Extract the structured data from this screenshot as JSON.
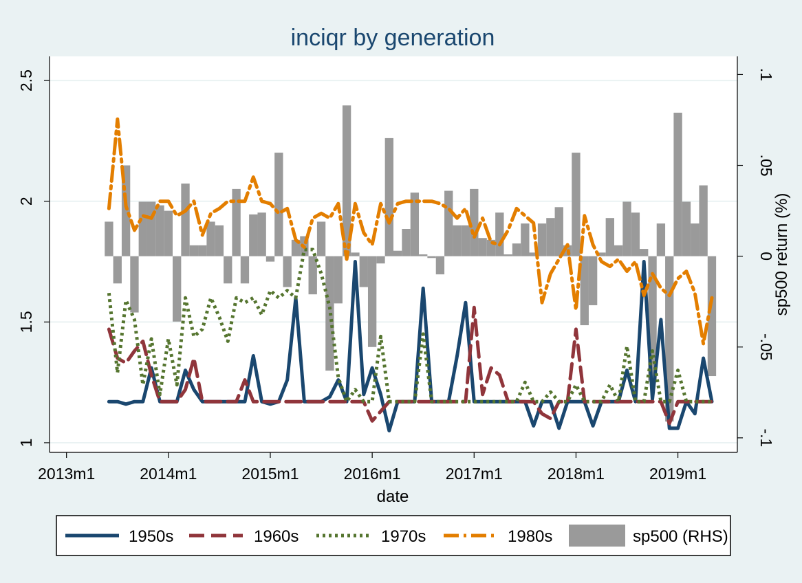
{
  "chart_data": {
    "type": "line",
    "title": "inciqr by generation",
    "xlabel": "date",
    "ylabel": "",
    "y2label": "sp500 return (%)",
    "x_ticks": [
      "2013m1",
      "2014m1",
      "2015m1",
      "2016m1",
      "2017m1",
      "2018m1",
      "2019m1"
    ],
    "y_ticks": [
      "1",
      "1.5",
      "2",
      "2.5"
    ],
    "y2_ticks": [
      "-.1",
      "-.05",
      "0",
      ".05",
      ".1"
    ],
    "xlim": [
      "2012m11",
      "2019m8"
    ],
    "ylim": [
      0.96,
      2.6
    ],
    "y2lim": [
      -0.108,
      0.11
    ],
    "grid": true,
    "legend_position": "bottom",
    "x": [
      "2013m6",
      "2013m7",
      "2013m8",
      "2013m9",
      "2013m10",
      "2013m11",
      "2013m12",
      "2014m1",
      "2014m2",
      "2014m3",
      "2014m4",
      "2014m5",
      "2014m6",
      "2014m7",
      "2014m8",
      "2014m9",
      "2014m10",
      "2014m11",
      "2014m12",
      "2015m1",
      "2015m2",
      "2015m3",
      "2015m4",
      "2015m5",
      "2015m6",
      "2015m7",
      "2015m8",
      "2015m9",
      "2015m10",
      "2015m11",
      "2015m12",
      "2016m1",
      "2016m2",
      "2016m3",
      "2016m4",
      "2016m5",
      "2016m6",
      "2016m7",
      "2016m8",
      "2016m9",
      "2016m10",
      "2016m11",
      "2016m12",
      "2017m1",
      "2017m2",
      "2017m3",
      "2017m4",
      "2017m5",
      "2017m6",
      "2017m7",
      "2017m8",
      "2017m9",
      "2017m10",
      "2017m11",
      "2017m12",
      "2018m1",
      "2018m2",
      "2018m3",
      "2018m4",
      "2018m5",
      "2018m6",
      "2018m7",
      "2018m8",
      "2018m9",
      "2018m10",
      "2018m11",
      "2018m12",
      "2019m1",
      "2019m2",
      "2019m3",
      "2019m4",
      "2019m5"
    ],
    "series": [
      {
        "name": "1950s",
        "color": "#1a476f",
        "dash": "solid",
        "values": [
          1.17,
          1.17,
          1.16,
          1.17,
          1.17,
          1.31,
          1.17,
          1.17,
          1.17,
          1.3,
          1.22,
          1.17,
          1.17,
          1.17,
          1.17,
          1.17,
          1.17,
          1.36,
          1.17,
          1.16,
          1.17,
          1.26,
          1.6,
          1.17,
          1.17,
          1.17,
          1.19,
          1.26,
          1.17,
          1.75,
          1.2,
          1.31,
          1.2,
          1.05,
          1.17,
          1.17,
          1.17,
          1.64,
          1.17,
          1.17,
          1.17,
          1.36,
          1.58,
          1.17,
          1.17,
          1.17,
          1.17,
          1.17,
          1.17,
          1.17,
          1.07,
          1.17,
          1.17,
          1.06,
          1.17,
          1.17,
          1.17,
          1.07,
          1.17,
          1.17,
          1.17,
          1.3,
          1.17,
          1.75,
          1.18,
          1.51,
          1.06,
          1.06,
          1.17,
          1.12,
          1.35,
          1.17
        ]
      },
      {
        "name": "1960s",
        "color": "#90353b",
        "dash": "dash",
        "values": [
          1.47,
          1.35,
          1.33,
          1.38,
          1.42,
          1.28,
          1.17,
          1.17,
          1.17,
          1.22,
          1.35,
          1.17,
          1.17,
          1.17,
          1.17,
          1.17,
          1.26,
          1.17,
          1.17,
          1.17,
          1.17,
          1.17,
          1.17,
          1.17,
          1.17,
          1.17,
          1.17,
          1.17,
          1.17,
          1.17,
          1.17,
          1.09,
          1.13,
          1.17,
          1.17,
          1.17,
          1.17,
          1.17,
          1.17,
          1.17,
          1.17,
          1.17,
          1.17,
          1.56,
          1.2,
          1.31,
          1.28,
          1.17,
          1.17,
          1.17,
          1.17,
          1.12,
          1.1,
          1.17,
          1.17,
          1.47,
          1.17,
          1.17,
          1.17,
          1.17,
          1.17,
          1.17,
          1.17,
          1.17,
          1.17,
          1.17,
          1.08,
          1.17,
          1.17,
          1.17,
          1.17,
          1.17
        ]
      },
      {
        "name": "1970s",
        "color": "#55752f",
        "dash": "dot",
        "values": [
          1.62,
          1.29,
          1.59,
          1.51,
          1.24,
          1.43,
          1.2,
          1.43,
          1.24,
          1.6,
          1.44,
          1.47,
          1.6,
          1.52,
          1.42,
          1.6,
          1.58,
          1.6,
          1.53,
          1.63,
          1.6,
          1.63,
          1.6,
          1.8,
          1.8,
          1.7,
          1.56,
          1.27,
          1.17,
          1.22,
          1.17,
          1.17,
          1.44,
          1.17,
          1.17,
          1.17,
          1.17,
          1.45,
          1.17,
          1.17,
          1.17,
          1.17,
          1.17,
          1.17,
          1.17,
          1.17,
          1.17,
          1.17,
          1.17,
          1.25,
          1.17,
          1.17,
          1.21,
          1.17,
          1.17,
          1.24,
          1.17,
          1.17,
          1.17,
          1.24,
          1.17,
          1.4,
          1.17,
          1.17,
          1.38,
          1.17,
          1.17,
          1.3,
          1.17,
          1.17,
          1.17,
          1.17
        ]
      },
      {
        "name": "1980s",
        "color": "#e37e00",
        "dash": "dashdot",
        "values": [
          1.97,
          2.34,
          1.98,
          1.88,
          1.94,
          1.93,
          2.0,
          2.0,
          1.94,
          1.96,
          2.0,
          1.86,
          1.95,
          1.97,
          2.0,
          2.0,
          2.0,
          2.1,
          2.0,
          1.99,
          1.95,
          1.97,
          1.84,
          1.81,
          1.93,
          1.95,
          1.93,
          1.99,
          1.76,
          1.99,
          1.87,
          1.82,
          1.99,
          1.91,
          1.99,
          2.0,
          2.0,
          2.0,
          2.0,
          1.99,
          1.97,
          1.93,
          1.97,
          1.85,
          1.93,
          1.83,
          1.82,
          1.88,
          1.97,
          1.94,
          1.91,
          1.58,
          1.7,
          1.76,
          1.82,
          1.55,
          1.94,
          1.82,
          1.75,
          1.73,
          1.76,
          1.71,
          1.75,
          1.61,
          1.7,
          1.64,
          1.61,
          1.68,
          1.71,
          1.62,
          1.41,
          1.6
        ]
      },
      {
        "name": "sp500 (RHS)",
        "color": "#9a9a9a",
        "type": "bar",
        "axis": "right",
        "values": [
          0.019,
          -0.015,
          0.05,
          -0.031,
          0.03,
          0.03,
          0.028,
          0.025,
          -0.036,
          0.04,
          0.006,
          0.006,
          0.019,
          0.017,
          -0.015,
          0.037,
          -0.015,
          0.023,
          0.024,
          -0.003,
          0.057,
          -0.017,
          0.009,
          0.011,
          -0.021,
          0.019,
          -0.063,
          -0.026,
          0.083,
          0.002,
          -0.017,
          -0.05,
          -0.004,
          0.065,
          0.003,
          0.015,
          0.035,
          0.001,
          -0.001,
          -0.01,
          0.036,
          0.017,
          0.017,
          0.037,
          0.01,
          0.009,
          0.024,
          0.001,
          0.007,
          0.018,
          0.002,
          0.018,
          0.021,
          0.027,
          0.006,
          0.057,
          -0.038,
          -0.027,
          0.002,
          0.021,
          0.006,
          0.03,
          0.024,
          0.004,
          -0.069,
          0.018,
          -0.091,
          0.079,
          0.03,
          0.018,
          0.039,
          -0.066
        ]
      }
    ]
  }
}
